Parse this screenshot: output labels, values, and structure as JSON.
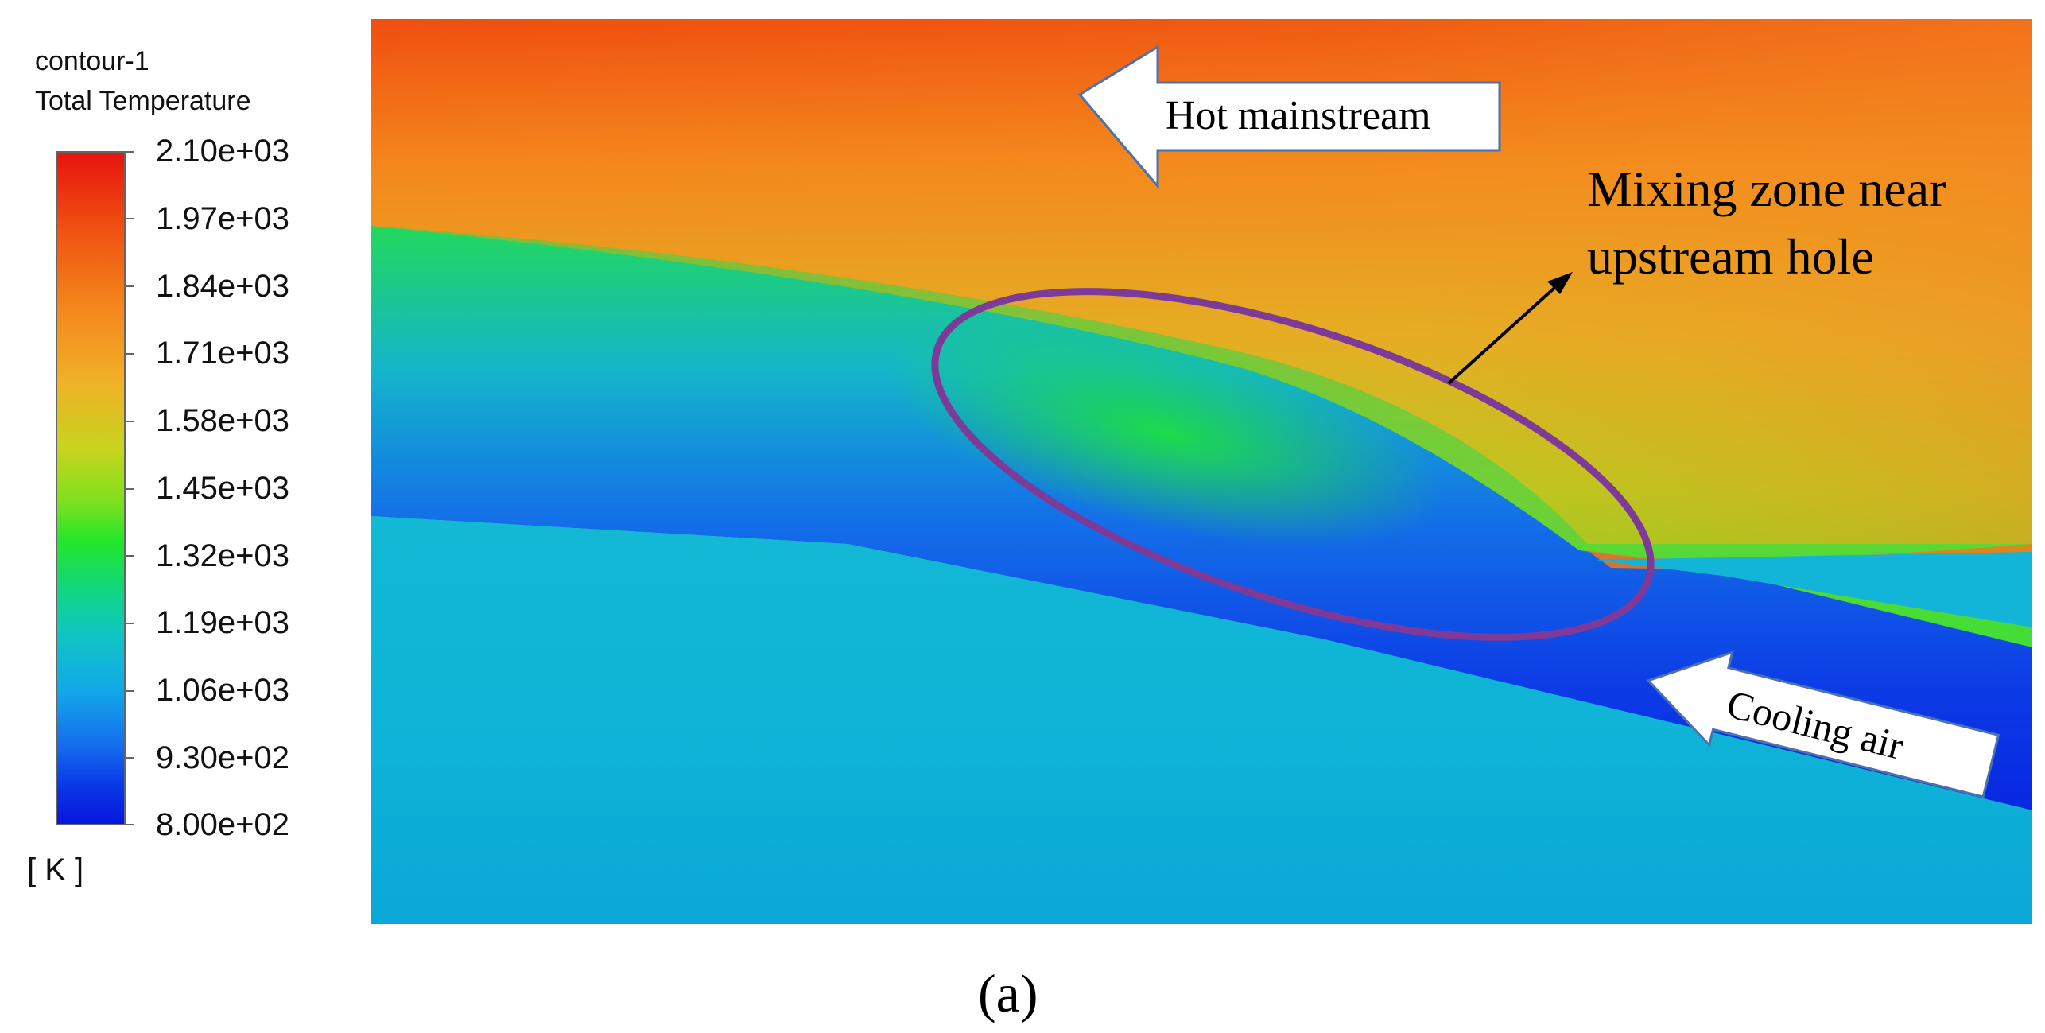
{
  "legend": {
    "title_line1": "contour-1",
    "title_line2": "Total Temperature",
    "ticks": [
      "2.10e+03",
      "1.97e+03",
      "1.84e+03",
      "1.71e+03",
      "1.58e+03",
      "1.45e+03",
      "1.32e+03",
      "1.19e+03",
      "1.06e+03",
      "9.30e+02",
      "8.00e+02"
    ],
    "units": "[ K ]",
    "range": [
      800,
      2100
    ]
  },
  "annotations": {
    "hot_arrow_label": "Hot mainstream",
    "cooling_arrow_label": "Cooling air",
    "mixing_label_line1": "Mixing zone near",
    "mixing_label_line2": "upstream hole"
  },
  "colors": {
    "ellipse": "#7d3a98",
    "hot": "#f06a14",
    "cold": "#0a2ae6",
    "mid": "#22dc2c",
    "solid": "#10b0d8"
  },
  "caption": "(a)"
}
